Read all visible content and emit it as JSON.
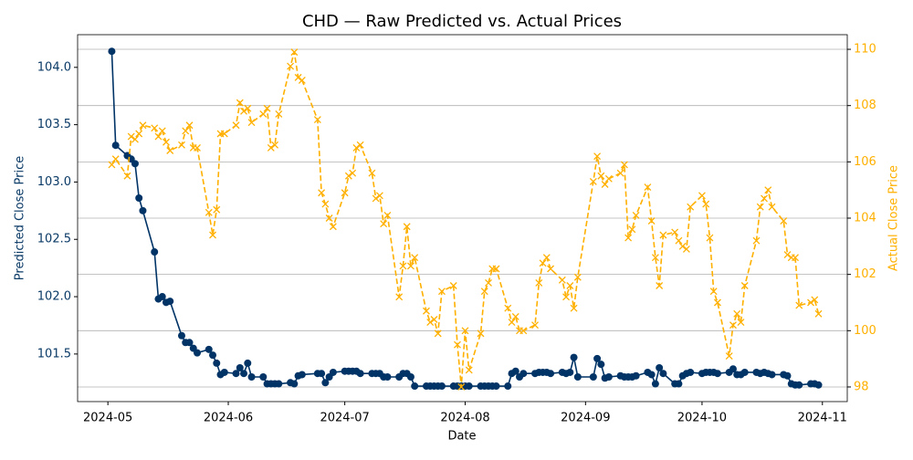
{
  "chart_data": {
    "type": "line",
    "title": "CHD — Raw Predicted vs. Actual Prices",
    "xlabel": "Date",
    "ylabel": "Predicted Close Price",
    "y2label": "Actual Close Price",
    "x": [
      19845,
      19846,
      19849,
      19850,
      19851,
      19852,
      19853,
      19856,
      19857,
      19858,
      19859,
      19860,
      19863,
      19864,
      19865,
      19866,
      19867,
      19870,
      19871,
      19872,
      19873,
      19874,
      19877,
      19878,
      19879,
      19880,
      19881,
      19884,
      19885,
      19886,
      19887,
      19888,
      19891,
      19892,
      19893,
      19894,
      19898,
      19899,
      19900,
      19901,
      19902,
      19905,
      19906,
      19907,
      19908,
      19909,
      19912,
      19913,
      19914,
      19915,
      19916,
      19919,
      19920,
      19921,
      19922,
      19923,
      19926,
      19927,
      19928,
      19929,
      19930,
      19933,
      19934,
      19935,
      19936,
      19937,
      19940,
      19941,
      19942,
      19943,
      19944,
      19947,
      19948,
      19949,
      19950,
      19951,
      19954,
      19955,
      19956,
      19957,
      19958,
      19961,
      19962,
      19963,
      19964,
      19965,
      19969,
      19970,
      19971,
      19972,
      19973,
      19976,
      19977,
      19978,
      19979,
      19980,
      19983,
      19984,
      19985,
      19986,
      19987,
      19990,
      19991,
      19992,
      19993,
      19994,
      19997,
      19998,
      19999,
      20000,
      20001,
      20004,
      20005,
      20006,
      20007,
      20008,
      20011,
      20012,
      20013,
      20014,
      20015,
      20018,
      20019,
      20020,
      20021,
      20022,
      20025,
      20026,
      20027
    ],
    "series": [
      {
        "color": "#003366",
        "axis": "y",
        "marker": "o",
        "dashed": false,
        "values": [
          104.14,
          103.32,
          103.23,
          103.2,
          103.16,
          102.86,
          102.75,
          102.39,
          101.98,
          102.0,
          101.95,
          101.96,
          101.66,
          101.6,
          101.6,
          101.55,
          101.51,
          101.54,
          101.49,
          101.42,
          101.32,
          101.34,
          101.33,
          101.38,
          101.33,
          101.42,
          101.3,
          101.3,
          101.24,
          101.24,
          101.24,
          101.24,
          101.25,
          101.24,
          101.31,
          101.32,
          101.33,
          101.33,
          101.25,
          101.3,
          101.34,
          101.35,
          101.35,
          101.35,
          101.35,
          101.33,
          101.33,
          101.33,
          101.33,
          101.3,
          101.3,
          101.3,
          101.33,
          101.33,
          101.3,
          101.22,
          101.22,
          101.22,
          101.22,
          101.22,
          101.22,
          101.22,
          101.22,
          101.22,
          101.22,
          101.22,
          101.22,
          101.22,
          101.22,
          101.22,
          101.22,
          101.22,
          101.33,
          101.35,
          101.3,
          101.33,
          101.33,
          101.34,
          101.34,
          101.34,
          101.33,
          101.34,
          101.33,
          101.34,
          101.47,
          101.3,
          101.3,
          101.46,
          101.41,
          101.29,
          101.3,
          101.31,
          101.3,
          101.3,
          101.3,
          101.31,
          101.34,
          101.32,
          101.24,
          101.38,
          101.33,
          101.24,
          101.24,
          101.31,
          101.33,
          101.34,
          101.33,
          101.34,
          101.34,
          101.34,
          101.33,
          101.34,
          101.37,
          101.32,
          101.32,
          101.34,
          101.34,
          101.33,
          101.34,
          101.33,
          101.32,
          101.32,
          101.31,
          101.24,
          101.23,
          101.23,
          101.24,
          101.24,
          101.23
        ]
      },
      {
        "color": "#ffb000",
        "axis": "y2",
        "marker": "x",
        "dashed": true,
        "values": [
          105.9,
          106.1,
          105.5,
          106.9,
          106.8,
          107.0,
          107.3,
          107.2,
          106.9,
          107.1,
          106.7,
          106.4,
          106.6,
          107.1,
          107.3,
          106.5,
          106.5,
          104.2,
          103.4,
          104.3,
          107.0,
          107.0,
          107.3,
          108.1,
          107.8,
          107.9,
          107.4,
          107.7,
          107.9,
          106.5,
          106.6,
          107.7,
          109.4,
          109.9,
          109.0,
          108.9,
          107.5,
          104.9,
          104.5,
          104.0,
          103.7,
          104.9,
          105.5,
          105.6,
          106.5,
          106.6,
          105.6,
          104.7,
          104.8,
          103.8,
          104.1,
          101.2,
          102.3,
          103.7,
          102.3,
          102.6,
          100.7,
          100.3,
          100.4,
          99.9,
          101.4,
          101.6,
          99.5,
          98.0,
          100.0,
          98.6,
          99.9,
          101.4,
          101.7,
          102.2,
          102.2,
          100.8,
          100.3,
          100.5,
          100.0,
          100.0,
          100.2,
          101.7,
          102.4,
          102.6,
          102.2,
          101.8,
          101.2,
          101.6,
          100.8,
          101.9,
          105.3,
          106.2,
          105.5,
          105.2,
          105.4,
          105.6,
          105.9,
          103.3,
          103.6,
          104.1,
          105.1,
          103.9,
          102.6,
          101.6,
          103.4,
          103.5,
          103.2,
          103.0,
          102.9,
          104.4,
          104.8,
          104.5,
          103.3,
          101.4,
          101.0,
          99.1,
          100.2,
          100.6,
          100.3,
          101.6,
          103.2,
          104.4,
          104.7,
          105.0,
          104.4,
          103.9,
          102.7,
          102.6,
          102.6,
          100.9,
          101.0,
          101.1,
          100.6
        ]
      }
    ],
    "xlim": [
      19836.2,
      20034.4
    ],
    "xticks": [
      {
        "value": 19844,
        "label": "2024-05"
      },
      {
        "value": 19875,
        "label": "2024-06"
      },
      {
        "value": 19905,
        "label": "2024-07"
      },
      {
        "value": 19936,
        "label": "2024-08"
      },
      {
        "value": 19967,
        "label": "2024-09"
      },
      {
        "value": 19997,
        "label": "2024-10"
      },
      {
        "value": 20028,
        "label": "2024-11"
      }
    ],
    "ylim": [
      101.085,
      104.285
    ],
    "yticks": [
      101.5,
      {
        "value": 102,
        "label": "102.0"
      },
      102.5,
      {
        "value": 103,
        "label": "103.0"
      },
      103.5,
      {
        "value": 104,
        "label": "104.0"
      }
    ],
    "y2lim": [
      97.48,
      110.52
    ],
    "y2ticks": [
      98,
      100,
      102,
      104,
      106,
      108,
      110
    ],
    "ycolor": "#0a3a66",
    "y2color": "#ffb000",
    "grid": "y2"
  }
}
